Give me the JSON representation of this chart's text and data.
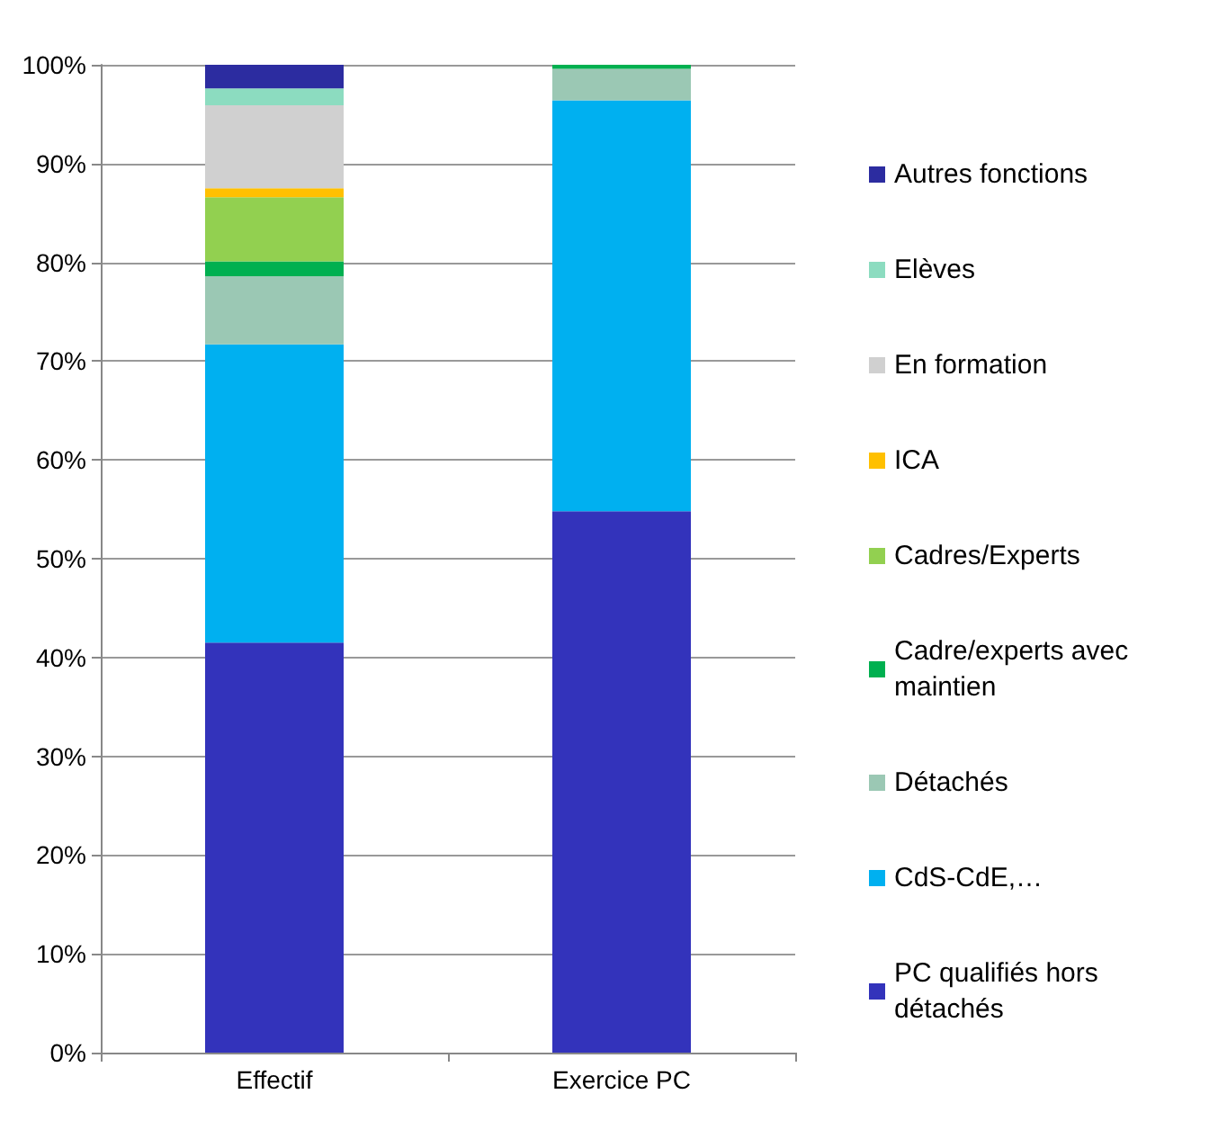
{
  "chart_data": {
    "type": "bar",
    "stacked": true,
    "categories": [
      "Effectif",
      "Exercice PC"
    ],
    "series": [
      {
        "name": "PC qualifiés hors détachés",
        "color": "#3333bb",
        "values": [
          41.5,
          54.8
        ]
      },
      {
        "name": "CdS-CdE,…",
        "color": "#00b0f0",
        "values": [
          30.2,
          41.6
        ]
      },
      {
        "name": "Détachés",
        "color": "#9bc8b4",
        "values": [
          6.9,
          3.2
        ]
      },
      {
        "name": "Cadre/experts avec maintien",
        "color": "#00b050",
        "values": [
          1.5,
          0.4
        ]
      },
      {
        "name": "Cadres/Experts",
        "color": "#92d050",
        "values": [
          6.5,
          0
        ]
      },
      {
        "name": "ICA",
        "color": "#ffc000",
        "values": [
          0.9,
          0
        ]
      },
      {
        "name": "En formation",
        "color": "#d0d0d0",
        "values": [
          8.4,
          0
        ]
      },
      {
        "name": "Elèves",
        "color": "#8cdcc0",
        "values": [
          1.7,
          0
        ]
      },
      {
        "name": "Autres fonctions",
        "color": "#2c2ca0",
        "values": [
          2.4,
          0
        ]
      }
    ],
    "ylim": [
      0,
      100
    ],
    "yticks": [
      {
        "value": 0,
        "label": "0%"
      },
      {
        "value": 10,
        "label": "10%"
      },
      {
        "value": 20,
        "label": "20%"
      },
      {
        "value": 30,
        "label": "30%"
      },
      {
        "value": 40,
        "label": "40%"
      },
      {
        "value": 50,
        "label": "50%"
      },
      {
        "value": 60,
        "label": "60%"
      },
      {
        "value": 70,
        "label": "70%"
      },
      {
        "value": 80,
        "label": "80%"
      },
      {
        "value": 90,
        "label": "90%"
      },
      {
        "value": 100,
        "label": "100%"
      }
    ],
    "grid": "y",
    "legend": "right"
  }
}
